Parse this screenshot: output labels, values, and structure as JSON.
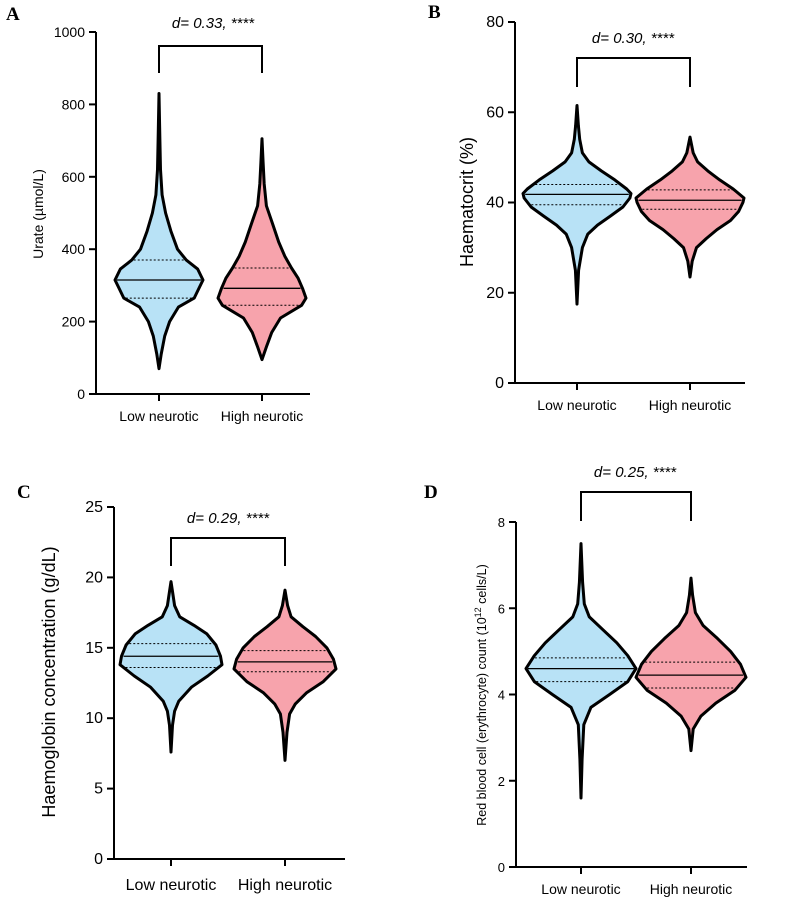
{
  "chart_data": [
    {
      "panel": "A",
      "type": "violin",
      "ylabel": "Urate (µmol/L)",
      "ylim": [
        0,
        1000
      ],
      "yticks": [
        0,
        200,
        400,
        600,
        800,
        1000
      ],
      "categories": [
        "Low neurotic",
        "High neurotic"
      ],
      "annotation": "d= 0.33, ****",
      "series": [
        {
          "name": "Low neurotic",
          "color": "#b8e2f6",
          "min": 70,
          "max": 830,
          "q1": 265,
          "median": 315,
          "q3": 370,
          "shape": [
            [
              70,
              0
            ],
            [
              110,
              0.05
            ],
            [
              160,
              0.13
            ],
            [
              200,
              0.24
            ],
            [
              240,
              0.44
            ],
            [
              265,
              0.8
            ],
            [
              290,
              0.9
            ],
            [
              315,
              1.0
            ],
            [
              345,
              0.88
            ],
            [
              370,
              0.62
            ],
            [
              400,
              0.42
            ],
            [
              450,
              0.27
            ],
            [
              500,
              0.15
            ],
            [
              550,
              0.07
            ],
            [
              620,
              0.035
            ],
            [
              700,
              0.02
            ],
            [
              830,
              0
            ]
          ]
        },
        {
          "name": "High neurotic",
          "color": "#f7a3ac",
          "min": 95,
          "max": 705,
          "q1": 245,
          "median": 292,
          "q3": 348,
          "shape": [
            [
              95,
              0
            ],
            [
              130,
              0.1
            ],
            [
              170,
              0.22
            ],
            [
              210,
              0.42
            ],
            [
              245,
              0.9
            ],
            [
              265,
              1.0
            ],
            [
              292,
              0.92
            ],
            [
              320,
              0.82
            ],
            [
              348,
              0.67
            ],
            [
              380,
              0.52
            ],
            [
              420,
              0.38
            ],
            [
              470,
              0.24
            ],
            [
              520,
              0.1
            ],
            [
              580,
              0.05
            ],
            [
              640,
              0.025
            ],
            [
              705,
              0
            ]
          ]
        }
      ]
    },
    {
      "panel": "B",
      "type": "violin",
      "ylabel": "Haematocrit (%)",
      "ylim": [
        0,
        80
      ],
      "yticks": [
        0,
        20,
        40,
        60,
        80
      ],
      "categories": [
        "Low neurotic",
        "High neurotic"
      ],
      "annotation": "d= 0.30, ****",
      "series": [
        {
          "name": "Low neurotic",
          "color": "#b8e2f6",
          "min": 17.5,
          "max": 61.5,
          "q1": 39.5,
          "median": 41.8,
          "q3": 44.0,
          "shape": [
            [
              17.5,
              0
            ],
            [
              25,
              0.03
            ],
            [
              30,
              0.1
            ],
            [
              33,
              0.2
            ],
            [
              35,
              0.38
            ],
            [
              37,
              0.62
            ],
            [
              39,
              0.85
            ],
            [
              41,
              0.98
            ],
            [
              42,
              1.0
            ],
            [
              43,
              0.92
            ],
            [
              45,
              0.7
            ],
            [
              47,
              0.45
            ],
            [
              49,
              0.22
            ],
            [
              51,
              0.1
            ],
            [
              54,
              0.05
            ],
            [
              57,
              0.025
            ],
            [
              61.5,
              0
            ]
          ]
        },
        {
          "name": "High neurotic",
          "color": "#f7a3ac",
          "min": 23.5,
          "max": 54.5,
          "q1": 38.5,
          "median": 40.5,
          "q3": 42.8,
          "shape": [
            [
              23.5,
              0
            ],
            [
              27,
              0.04
            ],
            [
              30,
              0.12
            ],
            [
              32,
              0.3
            ],
            [
              34,
              0.5
            ],
            [
              36,
              0.75
            ],
            [
              38,
              0.9
            ],
            [
              40,
              0.98
            ],
            [
              41,
              1.0
            ],
            [
              43,
              0.8
            ],
            [
              45,
              0.55
            ],
            [
              47,
              0.33
            ],
            [
              49,
              0.14
            ],
            [
              51,
              0.06
            ],
            [
              54.5,
              0
            ]
          ]
        }
      ]
    },
    {
      "panel": "C",
      "type": "violin",
      "ylabel": "Haemoglobin concentration (g/dL)",
      "ylim": [
        0,
        25
      ],
      "yticks": [
        0,
        5,
        10,
        15,
        20,
        25
      ],
      "categories": [
        "Low neurotic",
        "High neurotic"
      ],
      "annotation": "d= 0.29, ****",
      "series": [
        {
          "name": "Low neurotic",
          "color": "#b8e2f6",
          "min": 7.6,
          "max": 19.7,
          "q1": 13.6,
          "median": 14.4,
          "q3": 15.3,
          "shape": [
            [
              7.6,
              0
            ],
            [
              9.5,
              0.03
            ],
            [
              10.5,
              0.07
            ],
            [
              11.2,
              0.15
            ],
            [
              12.2,
              0.4
            ],
            [
              13,
              0.72
            ],
            [
              13.8,
              1.0
            ],
            [
              14.4,
              0.97
            ],
            [
              15.2,
              0.88
            ],
            [
              16,
              0.7
            ],
            [
              16.6,
              0.45
            ],
            [
              17.2,
              0.17
            ],
            [
              18,
              0.07
            ],
            [
              19,
              0.03
            ],
            [
              19.7,
              0
            ]
          ]
        },
        {
          "name": "High neurotic",
          "color": "#f7a3ac",
          "min": 7.0,
          "max": 19.1,
          "q1": 13.3,
          "median": 14.0,
          "q3": 14.8,
          "shape": [
            [
              7.0,
              0
            ],
            [
              9,
              0.04
            ],
            [
              10.3,
              0.09
            ],
            [
              11,
              0.2
            ],
            [
              11.8,
              0.42
            ],
            [
              12.6,
              0.75
            ],
            [
              13.5,
              1.0
            ],
            [
              14.2,
              0.95
            ],
            [
              15,
              0.82
            ],
            [
              15.8,
              0.6
            ],
            [
              16.5,
              0.35
            ],
            [
              17.2,
              0.12
            ],
            [
              18,
              0.05
            ],
            [
              19.1,
              0
            ]
          ]
        }
      ]
    },
    {
      "panel": "D",
      "type": "violin",
      "ylabel": "Red blood cell (erythrocyte) count (10",
      "ylabel_sup": "12",
      "ylabel_end": " cells/L)",
      "ylim": [
        0,
        8
      ],
      "yticks": [
        0,
        2,
        4,
        6,
        8
      ],
      "categories": [
        "Low neurotic",
        "High neurotic"
      ],
      "annotation": "d= 0.25, ****",
      "series": [
        {
          "name": "Low neurotic",
          "color": "#b8e2f6",
          "min": 1.6,
          "max": 7.5,
          "q1": 4.3,
          "median": 4.6,
          "q3": 4.85,
          "shape": [
            [
              1.6,
              0
            ],
            [
              2.5,
              0.02
            ],
            [
              3.3,
              0.05
            ],
            [
              3.7,
              0.18
            ],
            [
              4.0,
              0.52
            ],
            [
              4.3,
              0.85
            ],
            [
              4.6,
              1.0
            ],
            [
              4.9,
              0.85
            ],
            [
              5.2,
              0.65
            ],
            [
              5.5,
              0.4
            ],
            [
              5.8,
              0.15
            ],
            [
              6.1,
              0.06
            ],
            [
              6.6,
              0.03
            ],
            [
              7.5,
              0
            ]
          ]
        },
        {
          "name": "High neurotic",
          "color": "#f7a3ac",
          "min": 2.7,
          "max": 6.7,
          "q1": 4.15,
          "median": 4.45,
          "q3": 4.75,
          "shape": [
            [
              2.7,
              0
            ],
            [
              3.2,
              0.04
            ],
            [
              3.5,
              0.18
            ],
            [
              3.8,
              0.45
            ],
            [
              4.1,
              0.8
            ],
            [
              4.4,
              1.0
            ],
            [
              4.7,
              0.9
            ],
            [
              5.0,
              0.72
            ],
            [
              5.3,
              0.48
            ],
            [
              5.6,
              0.22
            ],
            [
              5.9,
              0.08
            ],
            [
              6.3,
              0.03
            ],
            [
              6.7,
              0
            ]
          ]
        }
      ]
    }
  ]
}
